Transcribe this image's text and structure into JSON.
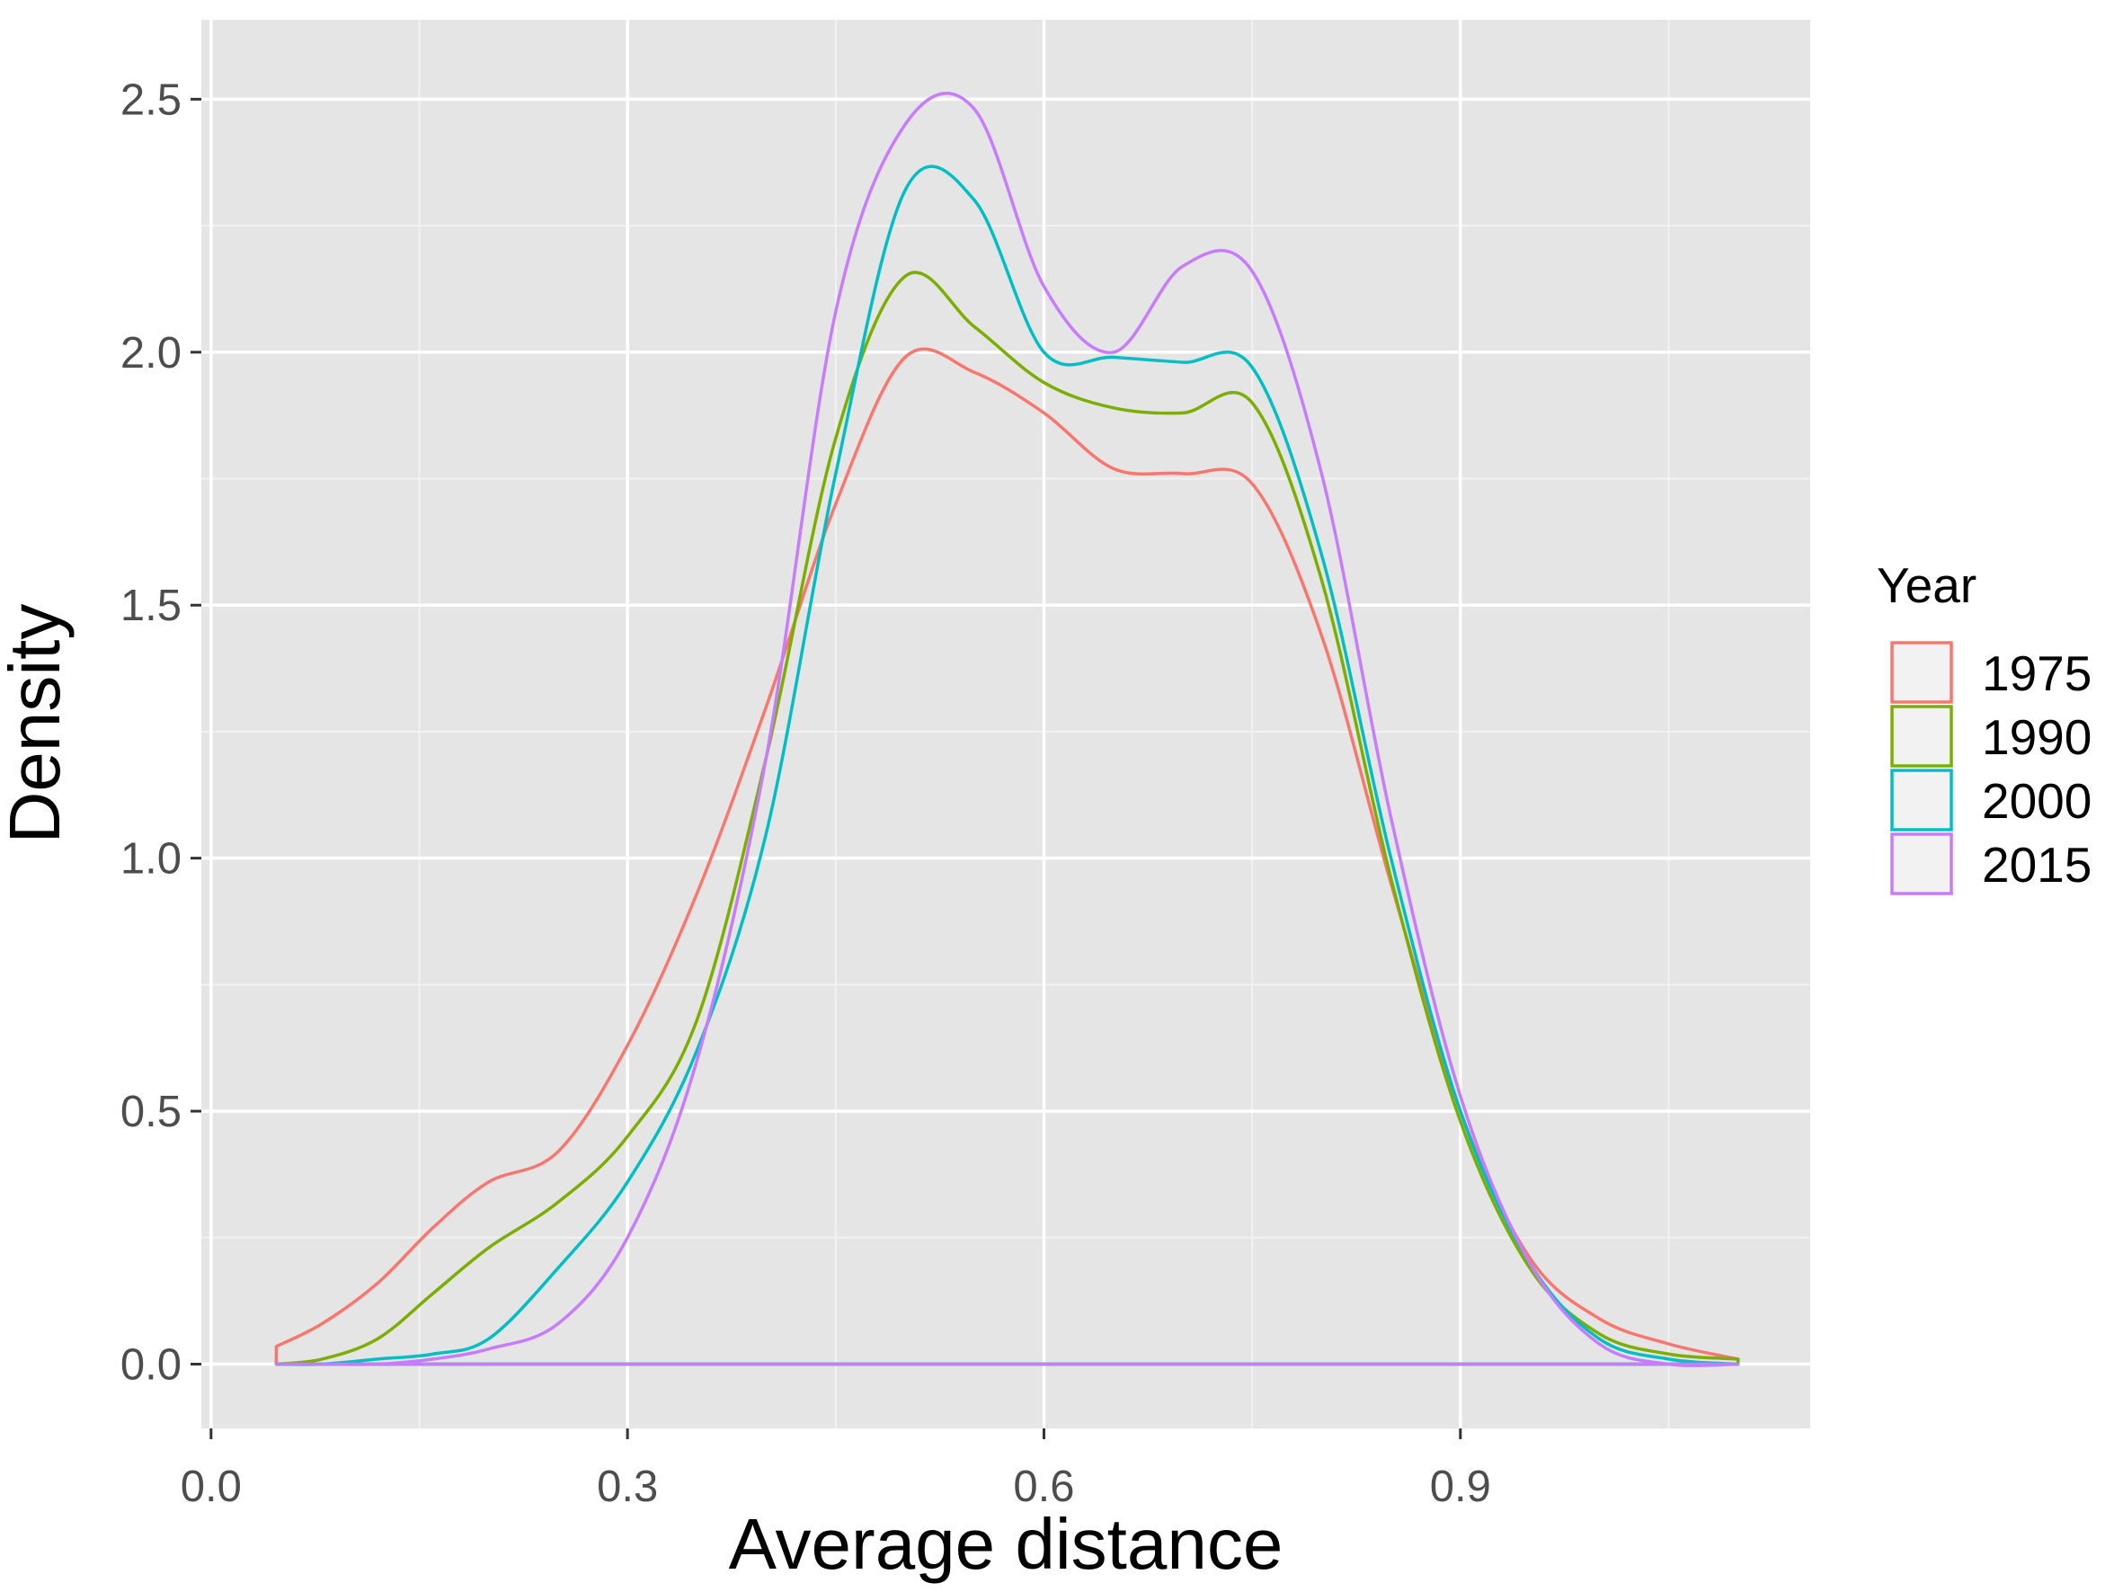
{
  "chart_data": {
    "type": "line",
    "subtype": "density",
    "title": "",
    "xlabel": "Average distance",
    "ylabel": "Density",
    "xlim": [
      -0.007,
      1.152
    ],
    "ylim": [
      -0.127,
      2.657
    ],
    "x_ticks": [
      0.0,
      0.3,
      0.6,
      0.9
    ],
    "x_tick_labels": [
      "0.0",
      "0.3",
      "0.6",
      "0.9"
    ],
    "y_ticks": [
      0.0,
      0.5,
      1.0,
      1.5,
      2.0,
      2.5
    ],
    "y_tick_labels": [
      "0.0",
      "0.5",
      "1.0",
      "1.5",
      "2.0",
      "2.5"
    ],
    "grid": true,
    "panel_background": "#e5e5e5",
    "legend": {
      "title": "Year",
      "position": "right"
    },
    "series": [
      {
        "name": "1975",
        "color": "#F8766D",
        "x": [
          0.047,
          0.08,
          0.12,
          0.16,
          0.2,
          0.25,
          0.3,
          0.35,
          0.4,
          0.45,
          0.5,
          0.55,
          0.6,
          0.65,
          0.7,
          0.75,
          0.8,
          0.85,
          0.9,
          0.95,
          1.0,
          1.05,
          1.1
        ],
        "y": [
          0.035,
          0.08,
          0.16,
          0.27,
          0.36,
          0.42,
          0.63,
          0.93,
          1.3,
          1.7,
          1.99,
          1.96,
          1.88,
          1.77,
          1.76,
          1.74,
          1.44,
          0.95,
          0.5,
          0.21,
          0.09,
          0.04,
          0.01
        ]
      },
      {
        "name": "1990",
        "color": "#7CAE00",
        "x": [
          0.047,
          0.08,
          0.12,
          0.16,
          0.2,
          0.25,
          0.3,
          0.35,
          0.4,
          0.45,
          0.5,
          0.55,
          0.6,
          0.65,
          0.7,
          0.75,
          0.8,
          0.85,
          0.9,
          0.95,
          1.0,
          1.05,
          1.1
        ],
        "y": [
          0.0,
          0.01,
          0.05,
          0.14,
          0.23,
          0.32,
          0.45,
          0.68,
          1.2,
          1.83,
          2.15,
          2.05,
          1.94,
          1.89,
          1.88,
          1.9,
          1.55,
          0.96,
          0.48,
          0.19,
          0.06,
          0.02,
          0.01
        ]
      },
      {
        "name": "2000",
        "color": "#00BFC4",
        "x": [
          0.047,
          0.08,
          0.12,
          0.16,
          0.2,
          0.25,
          0.3,
          0.35,
          0.4,
          0.45,
          0.5,
          0.55,
          0.6,
          0.65,
          0.7,
          0.75,
          0.8,
          0.85,
          0.9,
          0.95,
          1.0,
          1.05,
          1.1
        ],
        "y": [
          0.0,
          0.0,
          0.01,
          0.02,
          0.05,
          0.19,
          0.36,
          0.62,
          1.05,
          1.76,
          2.32,
          2.3,
          2.0,
          1.99,
          1.98,
          1.97,
          1.6,
          1.0,
          0.5,
          0.2,
          0.05,
          0.01,
          0.0
        ]
      },
      {
        "name": "2015",
        "color": "#C77CFF",
        "x": [
          0.047,
          0.08,
          0.12,
          0.16,
          0.2,
          0.25,
          0.3,
          0.35,
          0.4,
          0.45,
          0.5,
          0.55,
          0.6,
          0.65,
          0.7,
          0.75,
          0.8,
          0.85,
          0.9,
          0.95,
          1.0,
          1.05,
          1.1
        ],
        "y": [
          0.0,
          0.0,
          0.0,
          0.01,
          0.03,
          0.08,
          0.25,
          0.6,
          1.2,
          2.08,
          2.45,
          2.48,
          2.13,
          2.0,
          2.17,
          2.16,
          1.76,
          1.08,
          0.53,
          0.2,
          0.04,
          0.0,
          0.0
        ]
      }
    ]
  }
}
